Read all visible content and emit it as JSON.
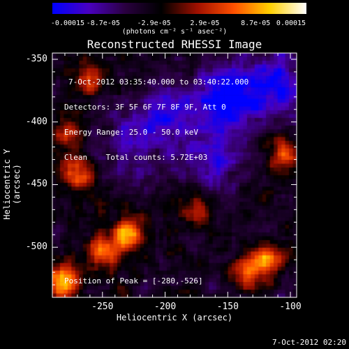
{
  "colorbar": {
    "tick_labels": [
      "-0.00015",
      "-8.7e-05",
      "-2.9e-05",
      "2.9e-05",
      "8.7e-05",
      "0.00015"
    ],
    "units": "(photons cm⁻² s⁻¹ asec⁻²)",
    "colors": [
      "#0000ff",
      "#4a00c0",
      "#2a0040",
      "#000000",
      "#a01000",
      "#ff5000",
      "#ffd000",
      "#ffffff"
    ]
  },
  "info": {
    "time_range": "7-Oct-2012 03:35:40.000 to 03:40:22.000",
    "detectors": "Detectors: 3F 5F 6F 7F 8F 9F, Att 0",
    "energy": "Energy Range: 25.0 - 50.0 keV",
    "clean": "Clean    Total counts: 5.72E+03",
    "peak": "Position of Peak = [-280,-526]"
  },
  "footer": "7-Oct-2012 02:20",
  "chart_data": {
    "type": "heatmap",
    "title": "Reconstructed RHESSI Image",
    "xlabel": "Heliocentric X (arcsec)",
    "ylabel": "Heliocentric Y (arcsec)",
    "xlim": [
      -290,
      -95
    ],
    "ylim": [
      -540,
      -345
    ],
    "xticks": [
      -250,
      -200,
      -150,
      -100
    ],
    "yticks": [
      -350,
      -400,
      -450,
      -500
    ],
    "xtick_labels": [
      "-250",
      "-200",
      "-150",
      "-100"
    ],
    "ytick_labels": [
      "-350",
      "-400",
      "-450",
      "-500"
    ],
    "value_range": [
      -0.00015,
      0.00015
    ],
    "peak": [
      -280,
      -526
    ],
    "hotspots": [
      {
        "x": -282,
        "y": -527,
        "value": 0.00015
      },
      {
        "x": -250,
        "y": -504,
        "value": 0.00011
      },
      {
        "x": -230,
        "y": -490,
        "value": 0.00013
      },
      {
        "x": -270,
        "y": -440,
        "value": 0.0001
      },
      {
        "x": -260,
        "y": -365,
        "value": 9e-05
      },
      {
        "x": -105,
        "y": -425,
        "value": 0.0001
      },
      {
        "x": -120,
        "y": -510,
        "value": 0.00011
      },
      {
        "x": -135,
        "y": -520,
        "value": 0.0001
      },
      {
        "x": -175,
        "y": -470,
        "value": 7e-05
      },
      {
        "x": -280,
        "y": -410,
        "value": 8e-05
      }
    ],
    "coldspots": [
      {
        "x": -150,
        "y": -380,
        "value": -0.00012
      },
      {
        "x": -110,
        "y": -370,
        "value": -9e-05
      },
      {
        "x": -200,
        "y": -395,
        "value": -8e-05
      },
      {
        "x": -160,
        "y": -430,
        "value": -7e-05
      },
      {
        "x": -230,
        "y": -420,
        "value": -5e-05
      }
    ]
  }
}
